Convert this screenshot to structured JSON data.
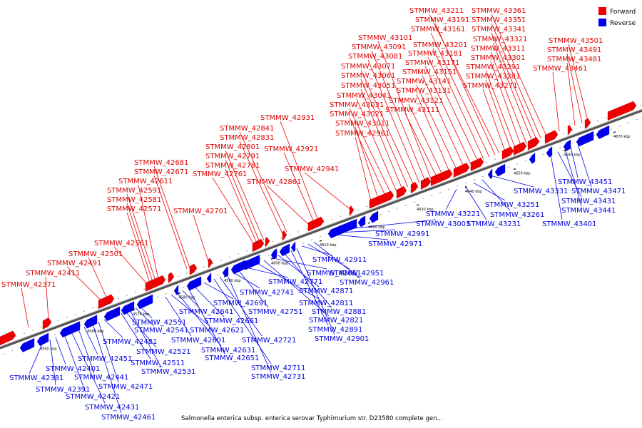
{
  "legend": {
    "items": [
      {
        "label": "Forward",
        "color": "#ee0000"
      },
      {
        "label": "Reverse",
        "color": "#0000ee"
      }
    ]
  },
  "caption": "Salmonella enterica subsp. enterica serovar Typhimurium str. D23580 complete gen...",
  "colors": {
    "forward": "#ee0000",
    "reverse": "#0000ee",
    "backbone": "#666666",
    "forward_line": "#ee0000",
    "reverse_line": "#0000ee"
  },
  "scale_ticks": [
    "4550 kbp",
    "4560 kbp",
    "4570 kbp",
    "4580 kbp",
    "4590 kbp",
    "4600 kbp",
    "4610 kbp",
    "4620 kbp",
    "4630 kbp",
    "4640 kbp",
    "4650 kbp",
    "4660 kbp",
    "4670 kbp"
  ],
  "forward_genes": [
    "STMMW_42371",
    "STMMW_42411",
    "STMMW_42491",
    "STMMW_42501",
    "STMMW_42561",
    "STMMW_42571",
    "STMMW_42581",
    "STMMW_42591",
    "STMMW_42611",
    "STMMW_42671",
    "STMMW_42681",
    "STMMW_42701",
    "STMMW_42761",
    "STMMW_42781",
    "STMMW_42791",
    "STMMW_42801",
    "STMMW_42831",
    "STMMW_42841",
    "STMMW_42861",
    "STMMW_42921",
    "STMMW_42931",
    "STMMW_42941",
    "STMMW_42981",
    "STMMW_43011",
    "STMMW_43021",
    "STMMW_43031",
    "STMMW_43041",
    "STMMW_43051",
    "STMMW_43061",
    "STMMW_43071",
    "STMMW_43081",
    "STMMW_43091",
    "STMMW_43101",
    "STMMW_43111",
    "STMMW_43121",
    "STMMW_43131",
    "STMMW_43141",
    "STMMW_43151",
    "STMMW_43171",
    "STMMW_43181",
    "STMMW_43201",
    "STMMW_43161",
    "STMMW_43191",
    "STMMW_43211",
    "STMMW_43271",
    "STMMW_43281",
    "STMMW_43291",
    "STMMW_43301",
    "STMMW_43311",
    "STMMW_43321",
    "STMMW_43341",
    "STMMW_43351",
    "STMMW_43361",
    "STMMW_43461",
    "STMMW_43481",
    "STMMW_43491",
    "STMMW_43501"
  ],
  "reverse_genes": [
    "STMMW_42381",
    "STMMW_42391",
    "STMMW_42401",
    "STMMW_42421",
    "STMMW_42431",
    "STMMW_42441",
    "STMMW_42451",
    "STMMW_42461",
    "STMMW_42471",
    "STMMW_42481",
    "STMMW_42511",
    "STMMW_42521",
    "STMMW_42531",
    "STMMW_42541",
    "STMMW_42551",
    "STMMW_42601",
    "STMMW_42621",
    "STMMW_42631",
    "STMMW_42641",
    "STMMW_42651",
    "STMMW_42661",
    "STMMW_42691",
    "STMMW_42711",
    "STMMW_42721",
    "STMMW_42731",
    "STMMW_42741",
    "STMMW_42751",
    "STMMW_42771",
    "STMMW_42811",
    "STMMW_42821",
    "STMMW_42851",
    "STMMW_42871",
    "STMMW_42881",
    "STMMW_42891",
    "STMMW_42901",
    "STMMW_42911",
    "STMMW_42951",
    "STMMW_42961",
    "STMMW_42971",
    "STMMW_42991",
    "STMMW_43001",
    "STMMW_43221",
    "STMMW_43231",
    "STMMW_43251",
    "STMMW_43261",
    "STMMW_43331",
    "STMMW_43401",
    "STMMW_43431",
    "STMMW_43441",
    "STMMW_43451",
    "STMMW_43471"
  ]
}
